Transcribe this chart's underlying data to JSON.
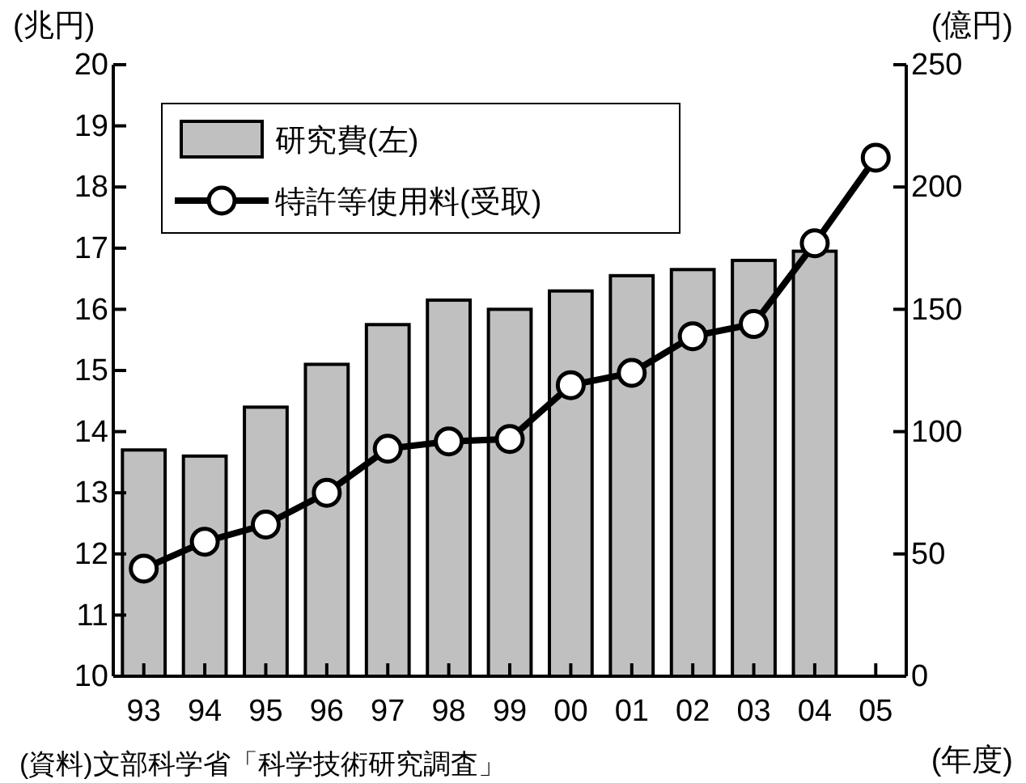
{
  "chart_data": {
    "type": "bar",
    "categories": [
      "93",
      "94",
      "95",
      "96",
      "97",
      "98",
      "99",
      "00",
      "01",
      "02",
      "03",
      "04",
      "05"
    ],
    "series": [
      {
        "name": "研究費(左)",
        "color": "#c0c0c0",
        "values": [
          13.7,
          13.6,
          14.4,
          15.1,
          15.75,
          16.15,
          16.0,
          16.3,
          16.55,
          16.65,
          16.8,
          16.95,
          null
        ]
      },
      {
        "name": "特許等使用料(受取)",
        "type": "line",
        "axis": "y2",
        "color": "#000000",
        "marker": "circle",
        "values": [
          44,
          55,
          62,
          75,
          93,
          96,
          97,
          119,
          124,
          139,
          144,
          177,
          212
        ]
      }
    ],
    "ylabel": "(兆円)",
    "y2label": "(億円)",
    "xlabel": "(年度)",
    "ylim": [
      10,
      20
    ],
    "yticks": [
      10,
      11,
      12,
      13,
      14,
      15,
      16,
      17,
      18,
      19,
      20
    ],
    "y2lim": [
      0,
      250
    ],
    "y2ticks": [
      0,
      50,
      100,
      150,
      200,
      250
    ],
    "legend": "top left",
    "annotations": [
      "(資料)文部科学省「科学技術研究調査」"
    ]
  }
}
